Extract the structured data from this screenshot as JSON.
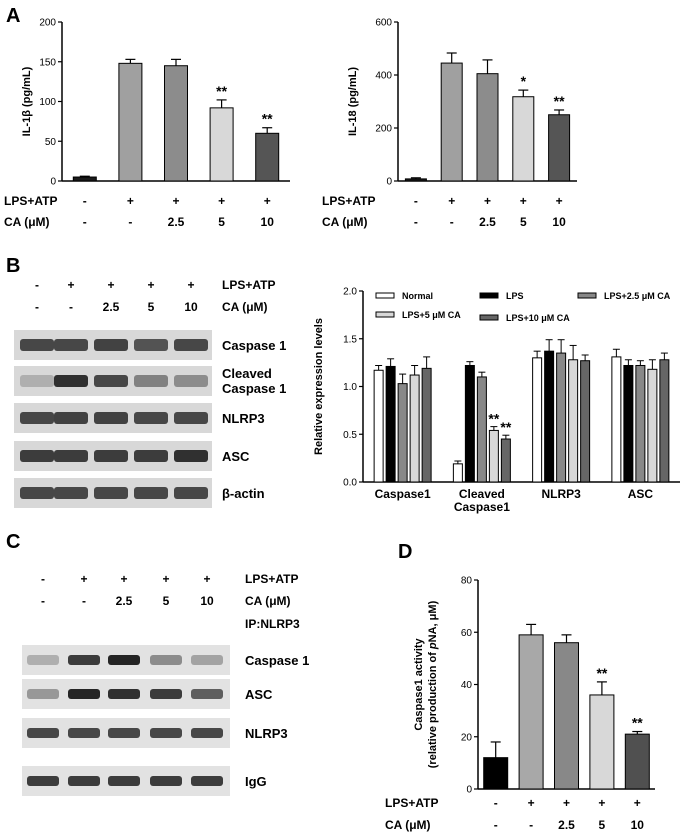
{
  "panel_labels": [
    "A",
    "B",
    "C",
    "D"
  ],
  "chart_data": [
    {
      "type": "bar",
      "panel": "A",
      "ylabel": "IL-1β (pg/mL)",
      "ylim": [
        0,
        200
      ],
      "yticks": [
        0,
        50,
        100,
        150,
        200
      ],
      "values": [
        5,
        148,
        145,
        92,
        60
      ],
      "errors": [
        1,
        5,
        8,
        10,
        7
      ],
      "colors": [
        "#1a1a1a",
        "#a0a0a0",
        "#8c8c8c",
        "#d8d8d8",
        "#555555"
      ],
      "significance": [
        "",
        "",
        "",
        "**",
        "**"
      ],
      "conditions": [
        {
          "label": "LPS+ATP",
          "values": [
            "-",
            "+",
            "+",
            "+",
            "+"
          ]
        },
        {
          "label": "CA (μM)",
          "values": [
            "-",
            "-",
            "2.5",
            "5",
            "10"
          ]
        }
      ]
    },
    {
      "type": "bar",
      "panel": "A",
      "ylabel": "IL-18 (pg/mL)",
      "ylim": [
        0,
        600
      ],
      "yticks": [
        0,
        200,
        400,
        600
      ],
      "values": [
        8,
        445,
        405,
        318,
        250
      ],
      "errors": [
        4,
        38,
        52,
        25,
        18
      ],
      "colors": [
        "#1a1a1a",
        "#a0a0a0",
        "#8c8c8c",
        "#d8d8d8",
        "#555555"
      ],
      "significance": [
        "",
        "",
        "",
        "*",
        "**"
      ],
      "conditions": [
        {
          "label": "LPS+ATP",
          "values": [
            "-",
            "+",
            "+",
            "+",
            "+"
          ]
        },
        {
          "label": "CA (μM)",
          "values": [
            "-",
            "-",
            "2.5",
            "5",
            "10"
          ]
        }
      ]
    },
    {
      "type": "bar",
      "panel": "B",
      "ylabel": "Relative expression levels",
      "ylim": [
        0,
        2.0
      ],
      "yticks": [
        "0.0",
        "0.5",
        "1.0",
        "1.5",
        "2.0"
      ],
      "categories": [
        "Caspase1",
        "Cleaved Caspase1",
        "NLRP3",
        "ASC"
      ],
      "series": [
        {
          "name": "Normal",
          "color": "#ffffff",
          "values": [
            1.17,
            0.19,
            1.3,
            1.31
          ],
          "errors": [
            0.05,
            0.03,
            0.07,
            0.08
          ]
        },
        {
          "name": "LPS",
          "color": "#000000",
          "values": [
            1.21,
            1.22,
            1.37,
            1.22
          ],
          "errors": [
            0.08,
            0.04,
            0.12,
            0.06
          ]
        },
        {
          "name": "LPS+2.5 μM CA",
          "color": "#888888",
          "values": [
            1.03,
            1.1,
            1.35,
            1.22
          ],
          "errors": [
            0.1,
            0.05,
            0.14,
            0.05
          ]
        },
        {
          "name": "LPS+5 μM CA",
          "color": "#d8d8d8",
          "values": [
            1.12,
            0.54,
            1.28,
            1.18
          ],
          "errors": [
            0.1,
            0.04,
            0.15,
            0.1
          ]
        },
        {
          "name": "LPS+10 μM CA",
          "color": "#666666",
          "values": [
            1.19,
            0.45,
            1.27,
            1.28
          ],
          "errors": [
            0.12,
            0.04,
            0.06,
            0.07
          ]
        }
      ],
      "significance": [
        {
          "category": 1,
          "series": 3,
          "label": "**"
        },
        {
          "category": 1,
          "series": 4,
          "label": "**"
        }
      ]
    },
    {
      "type": "bar",
      "panel": "D",
      "ylabel": "Caspase1 activity",
      "ylabel2_pre": "(relative production of ",
      "ylabel2_it": "p",
      "ylabel2_post": "NA, μM)",
      "ylim": [
        0,
        80
      ],
      "yticks": [
        0,
        20,
        40,
        60,
        80
      ],
      "values": [
        12,
        59,
        56,
        36,
        21
      ],
      "errors": [
        6,
        4,
        3,
        5,
        1
      ],
      "colors": [
        "#000000",
        "#a8a8a8",
        "#888888",
        "#d8d8d8",
        "#505050"
      ],
      "significance": [
        "",
        "",
        "",
        "**",
        "**"
      ],
      "conditions": [
        {
          "label": "LPS+ATP",
          "values": [
            "-",
            "+",
            "+",
            "+",
            "+"
          ]
        },
        {
          "label": "CA (μM)",
          "values": [
            "-",
            "-",
            "2.5",
            "5",
            "10"
          ]
        }
      ]
    }
  ],
  "blots": {
    "B": {
      "conditions": [
        {
          "label": "LPS+ATP",
          "values": [
            "-",
            "+",
            "+",
            "+",
            "+"
          ]
        },
        {
          "label": "CA (μM)",
          "values": [
            "-",
            "-",
            "2.5",
            "5",
            "10"
          ]
        }
      ],
      "rows": [
        {
          "label": "Caspase 1",
          "intensity": [
            0.8,
            0.8,
            0.82,
            0.75,
            0.8
          ]
        },
        {
          "label": "Cleaved",
          "label2": "Caspase 1",
          "intensity": [
            0.35,
            0.9,
            0.8,
            0.55,
            0.5
          ]
        },
        {
          "label": "NLRP3",
          "intensity": [
            0.8,
            0.82,
            0.82,
            0.8,
            0.8
          ]
        },
        {
          "label": "ASC",
          "intensity": [
            0.85,
            0.85,
            0.85,
            0.85,
            0.9
          ]
        },
        {
          "label": "β-actin",
          "intensity": [
            0.8,
            0.8,
            0.8,
            0.8,
            0.8
          ]
        }
      ]
    },
    "C": {
      "conditions": [
        {
          "label": "LPS+ATP",
          "values": [
            "-",
            "+",
            "+",
            "+",
            "+"
          ]
        },
        {
          "label": "CA (μM)",
          "values": [
            "-",
            "-",
            "2.5",
            "5",
            "10"
          ]
        }
      ],
      "extra_label": "IP:NLRP3",
      "rows": [
        {
          "label": "Caspase 1",
          "intensity": [
            0.35,
            0.85,
            0.95,
            0.5,
            0.4
          ]
        },
        {
          "label": "ASC",
          "intensity": [
            0.45,
            0.95,
            0.9,
            0.85,
            0.7
          ]
        },
        {
          "label": "NLRP3",
          "intensity": [
            0.8,
            0.8,
            0.8,
            0.8,
            0.8
          ]
        },
        {
          "label": "IgG",
          "intensity": [
            0.85,
            0.85,
            0.85,
            0.85,
            0.85
          ]
        }
      ]
    }
  }
}
